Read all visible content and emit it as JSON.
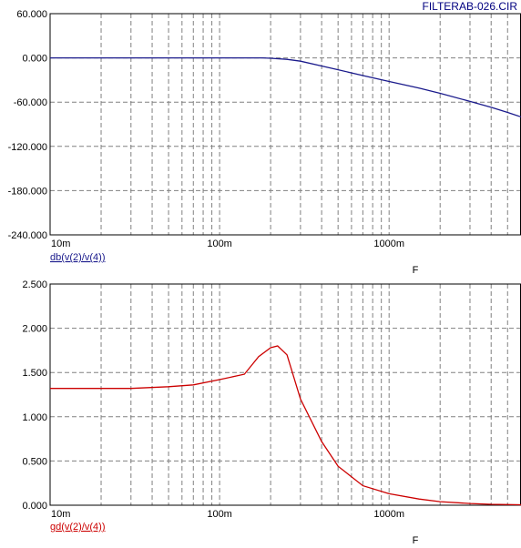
{
  "window": {
    "file_title": "FILTERAB-026.CIR"
  },
  "colors": {
    "magnitude_trace": "#1a1a8c",
    "delay_trace": "#cc0000",
    "grid": "#808080",
    "frame": "#000000"
  },
  "chart_data": [
    {
      "type": "line",
      "x_scale": "log",
      "xlim": [
        0.01,
        6
      ],
      "ylim": [
        -240,
        60
      ],
      "x_tick_labels": [
        {
          "value": 0.01,
          "label": "10m"
        },
        {
          "value": 0.1,
          "label": "100m"
        },
        {
          "value": 1,
          "label": "1000m"
        }
      ],
      "y_tick_labels": [
        {
          "value": 60,
          "label": "60.000"
        },
        {
          "value": 0,
          "label": "0.000"
        },
        {
          "value": -60,
          "label": "-60.000"
        },
        {
          "value": -120,
          "label": "-120.000"
        },
        {
          "value": -180,
          "label": "-180.000"
        },
        {
          "value": -240,
          "label": "-240.000"
        }
      ],
      "xlabel": "F",
      "grid": true,
      "series": [
        {
          "name": "db(v(2)/v(4))",
          "color": "#1a1a8c",
          "x": [
            0.01,
            0.02,
            0.05,
            0.1,
            0.15,
            0.18,
            0.2,
            0.25,
            0.3,
            0.4,
            0.5,
            0.7,
            1,
            1.5,
            2,
            3,
            4,
            5,
            6
          ],
          "y": [
            0,
            0,
            0,
            0,
            0,
            0,
            -0.5,
            -2,
            -4.5,
            -11,
            -16,
            -24,
            -32,
            -41,
            -48,
            -59,
            -67,
            -74,
            -80
          ]
        }
      ]
    },
    {
      "type": "line",
      "x_scale": "log",
      "xlim": [
        0.01,
        6
      ],
      "ylim": [
        0,
        2.5
      ],
      "x_tick_labels": [
        {
          "value": 0.01,
          "label": "10m"
        },
        {
          "value": 0.1,
          "label": "100m"
        },
        {
          "value": 1,
          "label": "1000m"
        }
      ],
      "y_tick_labels": [
        {
          "value": 2.5,
          "label": "2.500"
        },
        {
          "value": 2.0,
          "label": "2.000"
        },
        {
          "value": 1.5,
          "label": "1.500"
        },
        {
          "value": 1.0,
          "label": "1.000"
        },
        {
          "value": 0.5,
          "label": "0.500"
        },
        {
          "value": 0.0,
          "label": "0.000"
        }
      ],
      "xlabel": "F",
      "grid": true,
      "series": [
        {
          "name": "gd(v(2)/v(4))",
          "color": "#cc0000",
          "x": [
            0.01,
            0.02,
            0.03,
            0.05,
            0.07,
            0.1,
            0.14,
            0.17,
            0.2,
            0.22,
            0.25,
            0.3,
            0.4,
            0.5,
            0.7,
            1,
            1.5,
            2,
            3,
            4,
            6
          ],
          "y": [
            1.32,
            1.32,
            1.32,
            1.34,
            1.36,
            1.42,
            1.48,
            1.68,
            1.78,
            1.8,
            1.7,
            1.2,
            0.72,
            0.44,
            0.22,
            0.13,
            0.07,
            0.04,
            0.02,
            0.01,
            0.005
          ]
        }
      ]
    }
  ]
}
